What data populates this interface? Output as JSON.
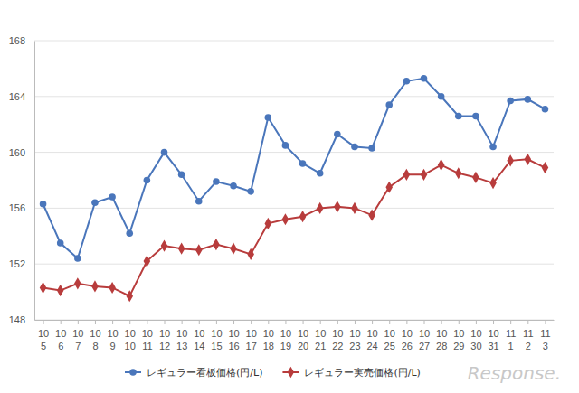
{
  "chart_data": {
    "type": "line",
    "categories": [
      "10\n5",
      "10\n6",
      "10\n7",
      "10\n8",
      "10\n9",
      "10\n10",
      "10\n11",
      "10\n12",
      "10\n13",
      "10\n14",
      "10\n15",
      "10\n16",
      "10\n17",
      "10\n18",
      "10\n19",
      "10\n20",
      "10\n21",
      "10\n22",
      "10\n23",
      "10\n24",
      "10\n25",
      "10\n26",
      "10\n27",
      "10\n28",
      "10\n29",
      "10\n30",
      "10\n31",
      "11\n1",
      "11\n2",
      "11\n3"
    ],
    "series": [
      {
        "name": "レギュラー看板価格(円/L)",
        "color": "#4a76bb",
        "marker": "circle",
        "values": [
          156.3,
          153.5,
          152.4,
          156.4,
          156.8,
          154.2,
          158.0,
          160.0,
          158.4,
          156.5,
          157.9,
          157.6,
          157.2,
          162.5,
          160.5,
          159.2,
          158.5,
          161.3,
          160.4,
          160.3,
          163.4,
          165.1,
          165.3,
          164.0,
          162.6,
          162.6,
          160.4,
          163.7,
          163.8,
          163.1
        ]
      },
      {
        "name": "レギュラー実売価格(円/L)",
        "color": "#b83c3c",
        "marker": "diamond",
        "values": [
          150.3,
          150.1,
          150.6,
          150.4,
          150.3,
          149.7,
          152.2,
          153.3,
          153.1,
          153.0,
          153.4,
          153.1,
          152.7,
          154.9,
          155.2,
          155.4,
          156.0,
          156.1,
          156.0,
          155.5,
          157.5,
          158.4,
          158.4,
          159.1,
          158.5,
          158.2,
          157.8,
          159.4,
          159.5,
          158.9
        ]
      }
    ],
    "ylim": [
      148,
      168
    ],
    "yticks": [
      148,
      152,
      156,
      160,
      164,
      168
    ],
    "grid": true,
    "legend": "bottom",
    "annotations": [
      "Response."
    ]
  }
}
